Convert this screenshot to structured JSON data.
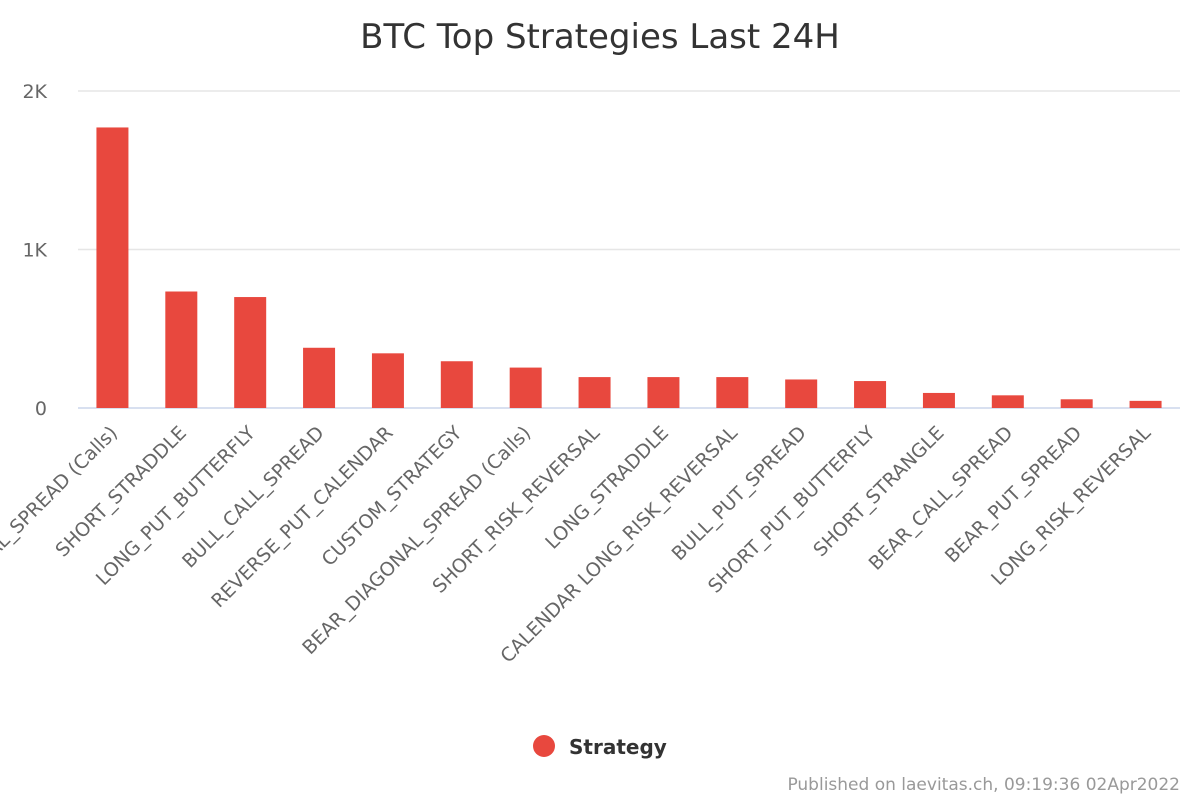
{
  "chart_data": {
    "type": "bar",
    "title": "BTC Top Strategies Last 24H",
    "categories": [
      "BEAR_DIAGONAL_SPREAD (Calls)",
      "SHORT_STRADDLE",
      "LONG_PUT_BUTTERFLY",
      "BULL_CALL_SPREAD",
      "REVERSE_PUT_CALENDAR",
      "CUSTOM_STRATEGY",
      "BEAR_DIAGONAL_SPREAD (Calls)",
      "SHORT_RISK_REVERSAL",
      "LONG_STRADDLE",
      "CALENDAR LONG_RISK_REVERSAL",
      "BULL_PUT_SPREAD",
      "SHORT_PUT_BUTTERFLY",
      "SHORT_STRANGLE",
      "BEAR_CALL_SPREAD",
      "BEAR_PUT_SPREAD",
      "LONG_RISK_REVERSAL"
    ],
    "series": [
      {
        "name": "Strategy",
        "color": "#e8483e",
        "values": [
          1770,
          735,
          700,
          380,
          345,
          295,
          255,
          195,
          195,
          195,
          180,
          170,
          95,
          80,
          55,
          45
        ]
      }
    ],
    "ylim": [
      0,
      2000
    ],
    "yticks": [
      0,
      1000,
      2000
    ],
    "ytick_labels": [
      "0",
      "1K",
      "2K"
    ],
    "grid": true,
    "legend_position": "bottom-center",
    "credit": "Published on laevitas.ch, 09:19:36 02Apr2022"
  }
}
